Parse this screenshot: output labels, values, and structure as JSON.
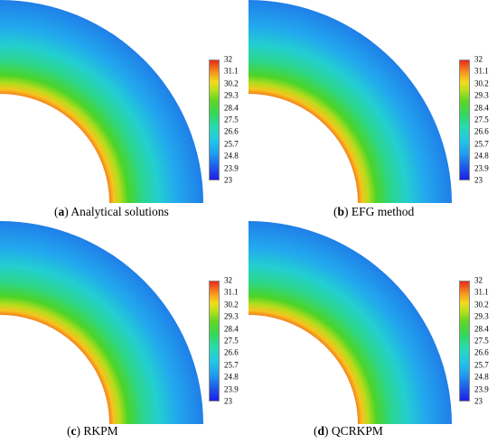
{
  "colorbar_levels": [
    "32",
    "31.1",
    "30.2",
    "29.3",
    "28.4",
    "27.5",
    "26.6",
    "25.7",
    "24.8",
    "23.9",
    "23"
  ],
  "panels": [
    {
      "letter": "a",
      "title": "Analytical solutions"
    },
    {
      "letter": "b",
      "title": "EFG method"
    },
    {
      "letter": "c",
      "title": "RKPM"
    },
    {
      "letter": "d",
      "title": "QCRKPM"
    }
  ],
  "colors": {
    "hot": "#ea2a1a",
    "cold": "#1e3fe0"
  }
}
